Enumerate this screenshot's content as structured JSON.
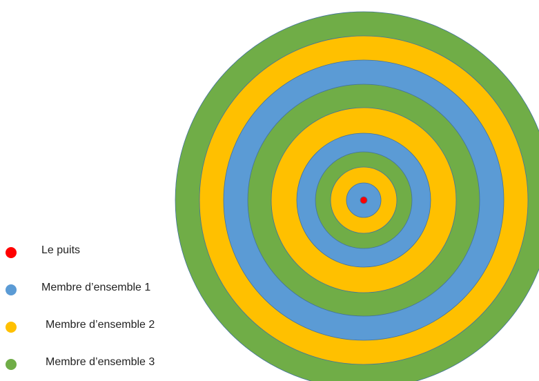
{
  "colors": {
    "green": "#70AD47",
    "yellow": "#FFC000",
    "blue": "#5B9BD5",
    "red": "#FF0000"
  },
  "rings": [
    "green",
    "yellow",
    "blue",
    "green",
    "yellow",
    "blue",
    "green",
    "yellow",
    "blue",
    "red"
  ],
  "legend": {
    "items": [
      {
        "label": "Le puits",
        "color": "red"
      },
      {
        "label": "Membre d’ensemble 1",
        "color": "blue"
      },
      {
        "label": "Membre d’ensemble 2",
        "color": "yellow"
      },
      {
        "label": "Membre d’ensemble 3",
        "color": "green"
      }
    ]
  }
}
